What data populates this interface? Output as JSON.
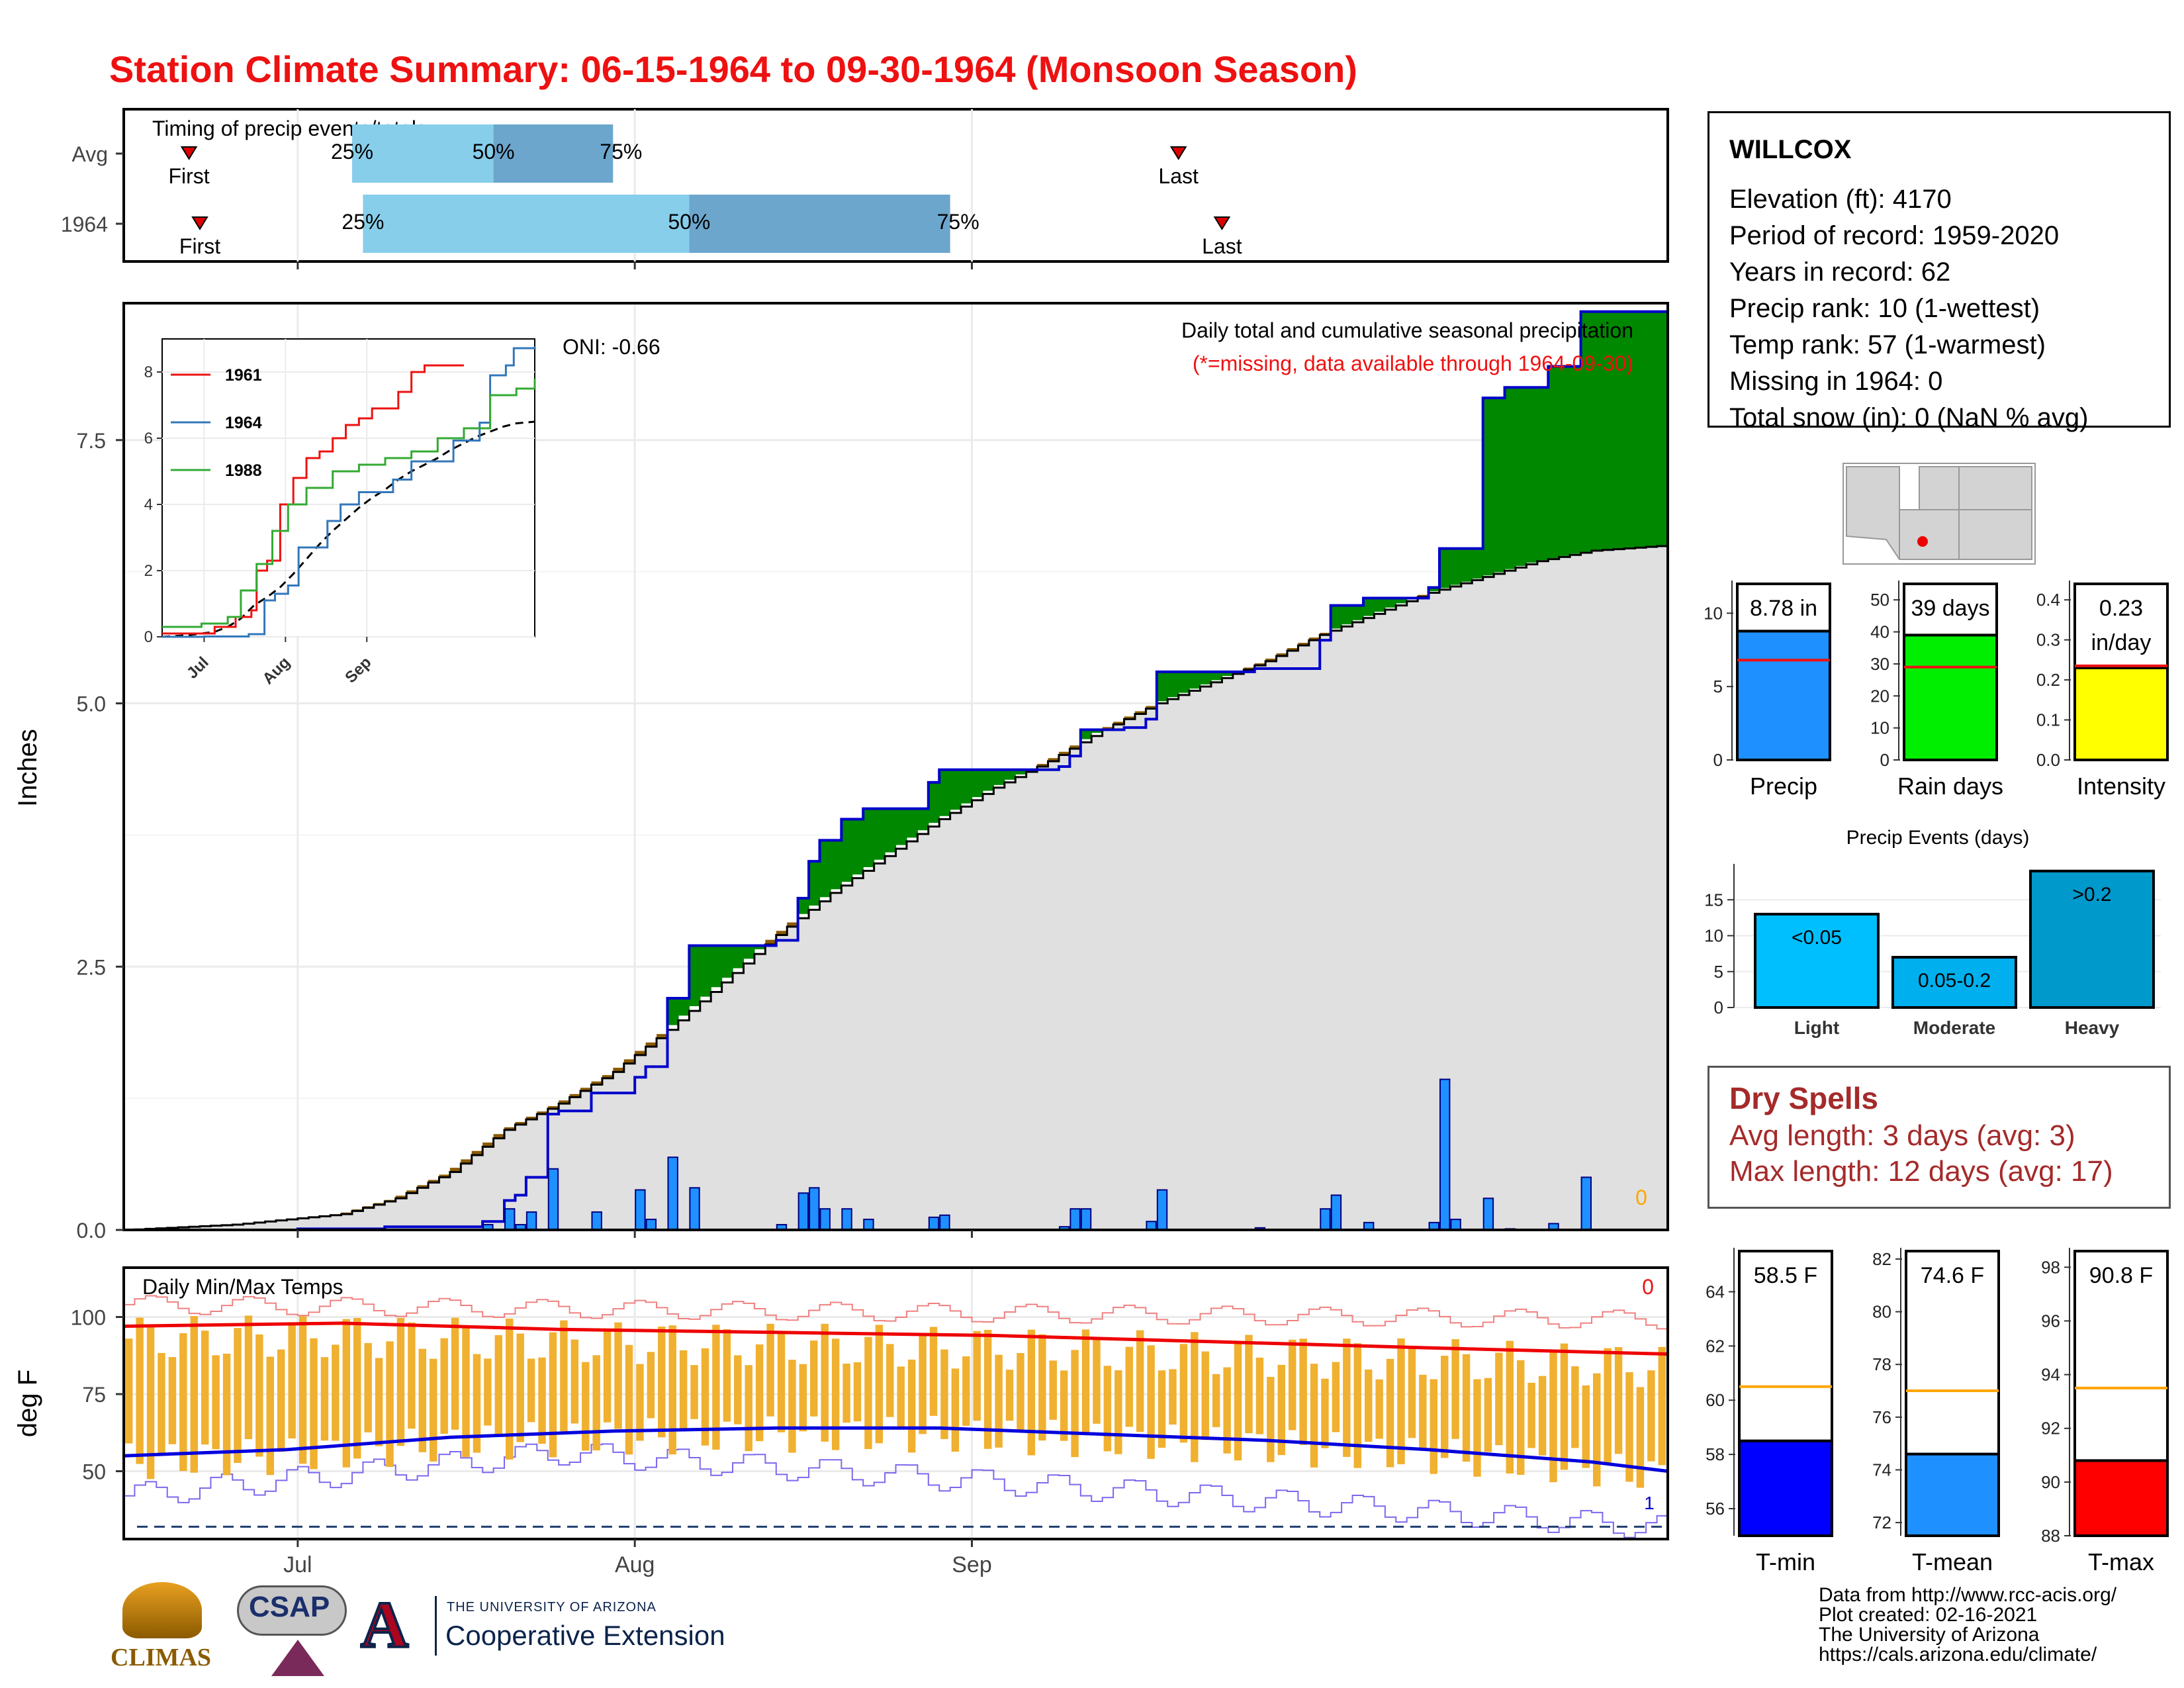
{
  "title": "Station Climate Summary: 06-15-1964 to 09-30-1964 (Monsoon Season)",
  "colors": {
    "title": "#ee1111",
    "avg_fill": "#e0e0e0",
    "surplus": "#008800",
    "deficit": "#8b5a00",
    "daily_bar": "#1e90ff",
    "line_1964": "#0000cc",
    "temp_bar": "#f0b030",
    "tmax_avg": "#ee0000",
    "tmin_avg": "#0000dd",
    "precip_box": "#1e90ff",
    "rain_box": "#00ee00",
    "intensity_box": "#ffff00",
    "light": "#00bfff",
    "moderate": "#00b0ee",
    "heavy": "#0099cc",
    "tmin_box": "#0000ff",
    "tmean_box": "#1e90ff",
    "tmax_box": "#ff0000"
  },
  "timing": {
    "label": "Timing of precip events/totals",
    "rows": [
      {
        "name": "Avg",
        "first_label": "First",
        "last_label": "Last",
        "q25": "25%",
        "q50": "50%",
        "q75": "75%",
        "first": 6,
        "p25": 21,
        "p50": 34,
        "p75": 45,
        "last": 97
      },
      {
        "name": "1964",
        "first_label": "First",
        "last_label": "Last",
        "q25": "25%",
        "q50": "50%",
        "q75": "75%",
        "first": 7,
        "p25": 22,
        "p50": 52,
        "p75": 76,
        "last": 101
      }
    ]
  },
  "precip": {
    "ylabel": "Inches",
    "header": "Daily total and cumulative seasonal precipitation",
    "subheader": "(*=missing, data available through 1964-09-30)",
    "oni": "ONI: -0.66",
    "missing_count": "0",
    "yticks": [
      "0.0",
      "2.5",
      "5.0",
      "7.5"
    ],
    "xticks": [
      "Jul",
      "Aug",
      "Sep"
    ],
    "inset": {
      "legend": [
        "1961",
        "1964",
        "1988"
      ],
      "yticks": [
        "0",
        "2",
        "4",
        "6",
        "8"
      ],
      "xticks": [
        "Jul",
        "Aug",
        "Sep"
      ]
    }
  },
  "chart_data": {
    "type": "area",
    "x_start": "1964-06-15",
    "x_end": "1964-09-30",
    "ylim": [
      0,
      8.8
    ],
    "cum_1964": [
      [
        0,
        0
      ],
      [
        16,
        0.01
      ],
      [
        24,
        0.03
      ],
      [
        33,
        0.08
      ],
      [
        35,
        0.28
      ],
      [
        36,
        0.33
      ],
      [
        37,
        0.5
      ],
      [
        39,
        1.1
      ],
      [
        40,
        1.13
      ],
      [
        43,
        1.3
      ],
      [
        47,
        1.45
      ],
      [
        48,
        1.55
      ],
      [
        50,
        2.2
      ],
      [
        52,
        2.7
      ],
      [
        60,
        2.75
      ],
      [
        62,
        3.15
      ],
      [
        63,
        3.5
      ],
      [
        64,
        3.7
      ],
      [
        66,
        3.9
      ],
      [
        68,
        4.0
      ],
      [
        74,
        4.25
      ],
      [
        75,
        4.37
      ],
      [
        86,
        4.4
      ],
      [
        87,
        4.5
      ],
      [
        88,
        4.75
      ],
      [
        92,
        4.77
      ],
      [
        94,
        4.85
      ],
      [
        95,
        5.3
      ],
      [
        104,
        5.33
      ],
      [
        110,
        5.6
      ],
      [
        111,
        5.93
      ],
      [
        114,
        6.0
      ],
      [
        120,
        6.1
      ],
      [
        121,
        6.47
      ],
      [
        125,
        7.9
      ],
      [
        127,
        8.0
      ],
      [
        131,
        8.2
      ],
      [
        134,
        8.72
      ],
      [
        142,
        8.78
      ]
    ],
    "avg_cum": [
      [
        0,
        0
      ],
      [
        10,
        0.05
      ],
      [
        20,
        0.15
      ],
      [
        25,
        0.3
      ],
      [
        30,
        0.55
      ],
      [
        35,
        0.95
      ],
      [
        40,
        1.2
      ],
      [
        45,
        1.5
      ],
      [
        50,
        1.9
      ],
      [
        55,
        2.35
      ],
      [
        60,
        2.8
      ],
      [
        65,
        3.2
      ],
      [
        70,
        3.55
      ],
      [
        75,
        3.9
      ],
      [
        80,
        4.2
      ],
      [
        85,
        4.45
      ],
      [
        90,
        4.75
      ],
      [
        95,
        5.0
      ],
      [
        100,
        5.2
      ],
      [
        105,
        5.4
      ],
      [
        110,
        5.65
      ],
      [
        115,
        5.85
      ],
      [
        120,
        6.05
      ],
      [
        125,
        6.2
      ],
      [
        130,
        6.35
      ],
      [
        135,
        6.45
      ],
      [
        142,
        6.5
      ]
    ],
    "daily_1964": [
      [
        16,
        0.01
      ],
      [
        33,
        0.05
      ],
      [
        35,
        0.2
      ],
      [
        36,
        0.05
      ],
      [
        37,
        0.17
      ],
      [
        39,
        0.58
      ],
      [
        43,
        0.17
      ],
      [
        47,
        0.38
      ],
      [
        48,
        0.1
      ],
      [
        50,
        0.69
      ],
      [
        52,
        0.4
      ],
      [
        60,
        0.05
      ],
      [
        62,
        0.35
      ],
      [
        63,
        0.4
      ],
      [
        64,
        0.2
      ],
      [
        66,
        0.2
      ],
      [
        68,
        0.1
      ],
      [
        74,
        0.12
      ],
      [
        75,
        0.14
      ],
      [
        86,
        0.03
      ],
      [
        87,
        0.2
      ],
      [
        88,
        0.2
      ],
      [
        94,
        0.08
      ],
      [
        95,
        0.38
      ],
      [
        104,
        0.02
      ],
      [
        110,
        0.2
      ],
      [
        111,
        0.33
      ],
      [
        114,
        0.07
      ],
      [
        120,
        0.07
      ],
      [
        121,
        1.43
      ],
      [
        122,
        0.1
      ],
      [
        125,
        0.3
      ],
      [
        127,
        0.01
      ],
      [
        131,
        0.06
      ],
      [
        134,
        0.5
      ]
    ],
    "inset_series": [
      {
        "name": "1961",
        "values": [
          [
            0,
            0.1
          ],
          [
            20,
            0.3
          ],
          [
            28,
            0.6
          ],
          [
            34,
            0.8
          ],
          [
            36,
            2.0
          ],
          [
            40,
            2.3
          ],
          [
            45,
            4.0
          ],
          [
            50,
            4.8
          ],
          [
            55,
            5.4
          ],
          [
            60,
            5.6
          ],
          [
            65,
            6.0
          ],
          [
            70,
            6.4
          ],
          [
            75,
            6.6
          ],
          [
            80,
            6.9
          ],
          [
            90,
            7.4
          ],
          [
            95,
            8.0
          ],
          [
            100,
            8.2
          ],
          [
            115,
            8.2
          ]
        ]
      },
      {
        "name": "1964",
        "values": [
          [
            0,
            0
          ],
          [
            16,
            0.01
          ],
          [
            33,
            0.08
          ],
          [
            39,
            1.1
          ],
          [
            43,
            1.3
          ],
          [
            48,
            1.55
          ],
          [
            52,
            2.7
          ],
          [
            63,
            3.5
          ],
          [
            68,
            4.0
          ],
          [
            75,
            4.37
          ],
          [
            88,
            4.75
          ],
          [
            95,
            5.3
          ],
          [
            111,
            5.93
          ],
          [
            121,
            6.47
          ],
          [
            125,
            7.9
          ],
          [
            131,
            8.2
          ],
          [
            134,
            8.72
          ],
          [
            142,
            8.78
          ]
        ]
      },
      {
        "name": "1988",
        "values": [
          [
            0,
            0.3
          ],
          [
            15,
            0.4
          ],
          [
            25,
            0.6
          ],
          [
            30,
            1.4
          ],
          [
            36,
            2.2
          ],
          [
            42,
            3.2
          ],
          [
            48,
            4.0
          ],
          [
            55,
            4.5
          ],
          [
            65,
            5.0
          ],
          [
            75,
            5.2
          ],
          [
            85,
            5.4
          ],
          [
            95,
            5.6
          ],
          [
            105,
            6.0
          ],
          [
            115,
            6.3
          ],
          [
            125,
            7.3
          ],
          [
            135,
            7.5
          ],
          [
            142,
            7.8
          ]
        ]
      }
    ],
    "temp_avg_max": [
      [
        0,
        97
      ],
      [
        20,
        98
      ],
      [
        40,
        96
      ],
      [
        60,
        95
      ],
      [
        80,
        94
      ],
      [
        100,
        92
      ],
      [
        120,
        90
      ],
      [
        142,
        88
      ]
    ],
    "temp_avg_min": [
      [
        0,
        55
      ],
      [
        15,
        57
      ],
      [
        30,
        61
      ],
      [
        45,
        63
      ],
      [
        60,
        64
      ],
      [
        75,
        64
      ],
      [
        90,
        62
      ],
      [
        105,
        60
      ],
      [
        120,
        57
      ],
      [
        135,
        53
      ],
      [
        142,
        50
      ]
    ]
  },
  "temps": {
    "title": "Daily Min/Max Temps",
    "ylabel": "deg F",
    "missing_count": "0",
    "low_count": "1",
    "yticks": [
      "50",
      "75",
      "100"
    ]
  },
  "station": {
    "name": "WILLCOX",
    "lines": [
      "Elevation (ft): 4170",
      "Period of record: 1959-2020",
      "Years in record: 62",
      "Precip rank: 10 (1-wettest)",
      "Temp rank: 57 (1-warmest)",
      "Missing in 1964: 0",
      "Total snow (in): 0 (NaN % avg)"
    ]
  },
  "summary_bars": [
    {
      "label": "Precip",
      "value_label": "8.78 in",
      "value": 8.78,
      "avg": 6.8,
      "ymax": 12,
      "yticks": [
        "0",
        "5",
        "10"
      ]
    },
    {
      "label": "Rain days",
      "value_label": "39 days",
      "value": 39,
      "avg": 29,
      "ymax": 55,
      "yticks": [
        "0",
        "10",
        "20",
        "30",
        "40",
        "50"
      ]
    },
    {
      "label": "Intensity",
      "value_label": "0.23",
      "value_label2": "in/day",
      "value": 0.23,
      "avg": 0.235,
      "ymax": 0.44,
      "yticks": [
        "0.0",
        "0.1",
        "0.2",
        "0.3",
        "0.4"
      ]
    }
  ],
  "events": {
    "title": "Precip Events (days)",
    "categories": [
      "Light",
      "Moderate",
      "Heavy"
    ],
    "labels": [
      "<0.05",
      "0.05-0.2",
      ">0.2"
    ],
    "values": [
      13,
      7,
      19
    ],
    "yticks": [
      "0",
      "5",
      "10",
      "15"
    ]
  },
  "dry_spells": {
    "title": "Dry Spells",
    "avg_length": "Avg length: 3 days (avg: 3)",
    "max_length": "Max length: 12 days (avg: 17)"
  },
  "temp_bars": [
    {
      "label": "T-min",
      "value_label": "58.5 F",
      "value": 58.5,
      "avg": 60.5,
      "ymin": 55,
      "ymax": 65.5,
      "yticks": [
        "56",
        "58",
        "60",
        "62",
        "64"
      ]
    },
    {
      "label": "T-mean",
      "value_label": "74.6 F",
      "value": 74.6,
      "avg": 77,
      "ymin": 71.5,
      "ymax": 82.3,
      "yticks": [
        "72",
        "74",
        "76",
        "78",
        "80",
        "82"
      ]
    },
    {
      "label": "T-max",
      "value_label": "90.8 F",
      "value": 90.8,
      "avg": 93.5,
      "ymin": 88,
      "ymax": 98.6,
      "yticks": [
        "88",
        "90",
        "92",
        "94",
        "96",
        "98"
      ]
    }
  ],
  "footer": [
    "Data from http://www.rcc-acis.org/",
    "Plot created: 02-16-2021",
    "The University of Arizona",
    "https://cals.arizona.edu/climate/"
  ],
  "logos": {
    "climas": "CLIMAS",
    "csap": "CSAP",
    "ua_top": "THE UNIVERSITY OF ARIZONA",
    "ua_bottom": "Cooperative Extension",
    "ua_mark": "A"
  }
}
